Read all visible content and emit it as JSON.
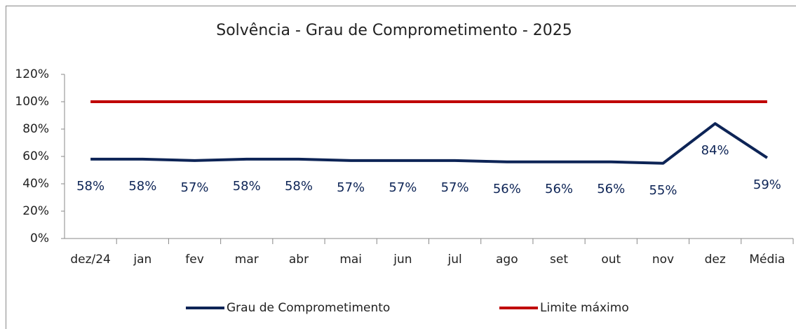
{
  "chart_data": {
    "type": "line",
    "title": "Solvência - Grau de Comprometimento - 2025",
    "categories": [
      "dez/24",
      "jan",
      "fev",
      "mar",
      "abr",
      "mai",
      "jun",
      "jul",
      "ago",
      "set",
      "out",
      "nov",
      "dez",
      "Média"
    ],
    "series": [
      {
        "name": "Grau de Comprometimento",
        "color": "#0d2456",
        "values": [
          58,
          58,
          57,
          58,
          58,
          57,
          57,
          57,
          56,
          56,
          56,
          55,
          84,
          59
        ],
        "value_labels": [
          "58%",
          "58%",
          "57%",
          "58%",
          "58%",
          "57%",
          "57%",
          "57%",
          "56%",
          "56%",
          "56%",
          "55%",
          "84%",
          "59%"
        ]
      },
      {
        "name": "Limite máximo",
        "color": "#c00000",
        "values": [
          100,
          100,
          100,
          100,
          100,
          100,
          100,
          100,
          100,
          100,
          100,
          100,
          100,
          100
        ]
      }
    ],
    "ylim": [
      0,
      120
    ],
    "yticks": [
      {
        "value": 0,
        "label": "0%"
      },
      {
        "value": 20,
        "label": "20%"
      },
      {
        "value": 40,
        "label": "40%"
      },
      {
        "value": 60,
        "label": "60%"
      },
      {
        "value": 80,
        "label": "80%"
      },
      {
        "value": 100,
        "label": "100%"
      },
      {
        "value": 120,
        "label": "120%"
      }
    ],
    "grid": false,
    "legend": "bottom"
  }
}
